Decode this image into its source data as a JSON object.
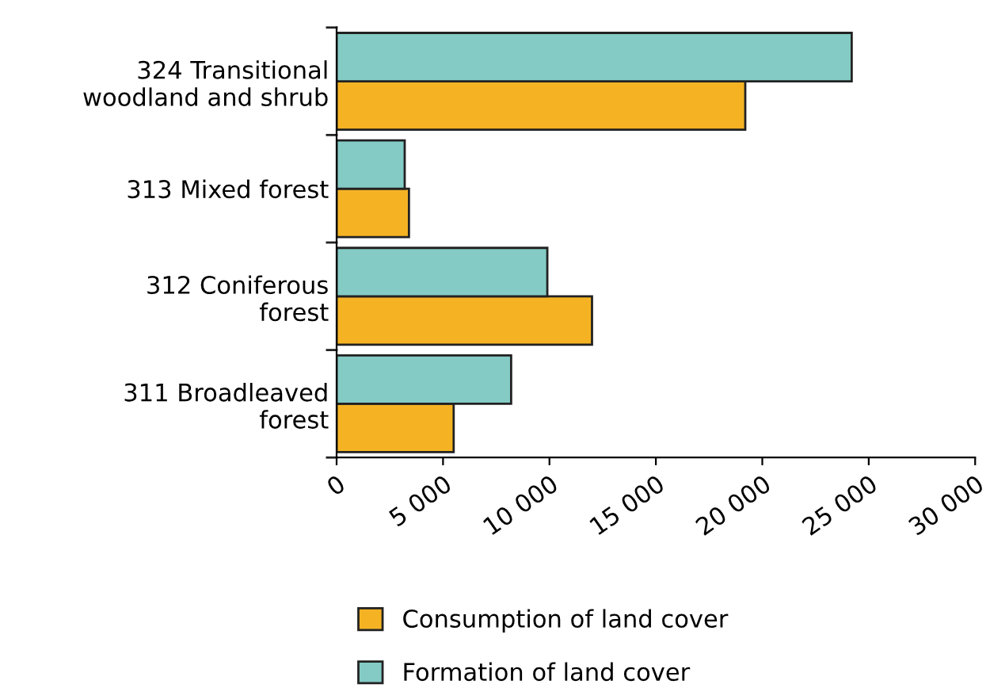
{
  "chart_data": {
    "type": "bar",
    "orientation": "horizontal",
    "categories": [
      "324 Transitional\nwoodland and shrub",
      "313 Mixed forest",
      "312 Coniferous\nforest",
      "311 Broadleaved\nforest"
    ],
    "series": [
      {
        "name": "Consumption of land cover",
        "color": "#f5b324",
        "values": [
          19200,
          3400,
          12000,
          5500
        ]
      },
      {
        "name": "Formation of land cover",
        "color": "#84cbc5",
        "values": [
          24200,
          3200,
          9900,
          8200
        ]
      }
    ],
    "xlim": [
      0,
      30000
    ],
    "xticks": [
      {
        "value": 0,
        "label": "0"
      },
      {
        "value": 5000,
        "label": "5 000"
      },
      {
        "value": 10000,
        "label": "10 000"
      },
      {
        "value": 15000,
        "label": "15 000"
      },
      {
        "value": 20000,
        "label": "20 000"
      },
      {
        "value": 25000,
        "label": "25 000"
      },
      {
        "value": 30000,
        "label": "30 000"
      }
    ],
    "grid": false,
    "legend": "bottom"
  }
}
